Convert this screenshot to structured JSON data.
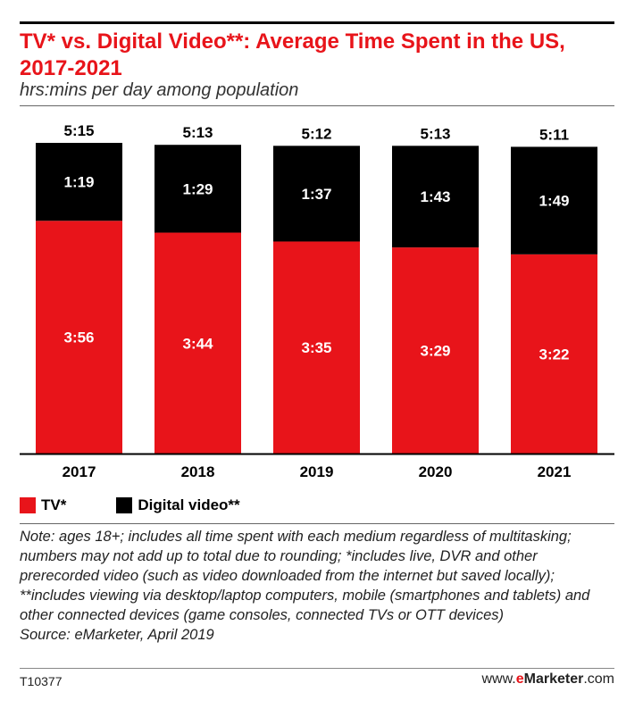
{
  "header": {
    "title": "TV* vs. Digital Video**: Average Time Spent in the US, 2017-2021",
    "subtitle": "hrs:mins per day among population"
  },
  "legend": [
    {
      "label": "TV*",
      "color": "#e8141a"
    },
    {
      "label": "Digital video**",
      "color": "#000000"
    }
  ],
  "footer": {
    "note": "Note: ages 18+; includes all time spent with each medium regardless of multitasking; numbers may not add up to total due to rounding; *includes live, DVR and other prerecorded video (such as video downloaded from the internet but saved locally); **includes viewing via desktop/laptop computers, mobile (smartphones and tablets) and other connected devices (game consoles, connected TVs or OTT devices)",
    "source": "Source: eMarketer, April 2019",
    "code": "T10377",
    "brand_prefix": "www.",
    "brand_e": "e",
    "brand_name": "Marketer",
    "brand_suffix": ".com"
  },
  "chart_data": {
    "type": "bar",
    "stacked": true,
    "categories": [
      "2017",
      "2018",
      "2019",
      "2020",
      "2021"
    ],
    "series": [
      {
        "name": "TV*",
        "color": "#e8141a",
        "values": [
          236,
          224,
          215,
          209,
          202
        ],
        "labels": [
          "3:56",
          "3:44",
          "3:35",
          "3:29",
          "3:22"
        ]
      },
      {
        "name": "Digital video**",
        "color": "#000000",
        "values": [
          79,
          89,
          97,
          103,
          109
        ],
        "labels": [
          "1:19",
          "1:29",
          "1:37",
          "1:43",
          "1:49"
        ]
      }
    ],
    "totals": [
      "5:15",
      "5:13",
      "5:12",
      "5:13",
      "5:11"
    ],
    "title": "TV* vs. Digital Video**: Average Time Spent in the US, 2017-2021",
    "ylabel": "hrs:mins per day among population",
    "xlabel": "",
    "ylim": [
      0,
      315
    ],
    "grid": false,
    "legend_position": "bottom-left"
  }
}
